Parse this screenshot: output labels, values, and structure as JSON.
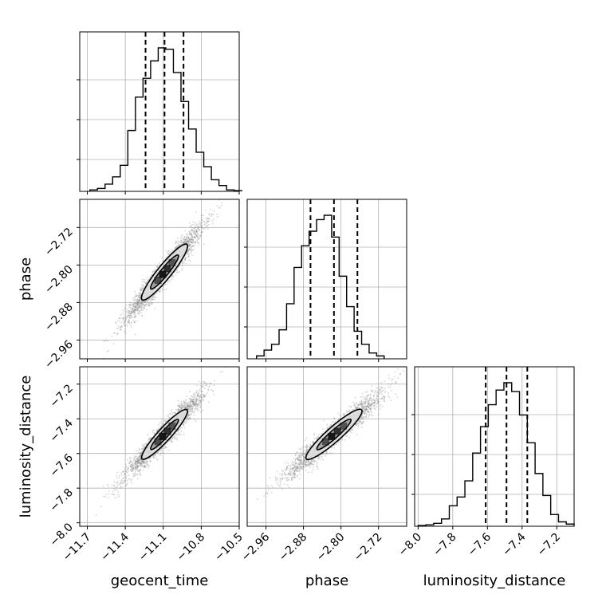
{
  "chart_data": {
    "type": "corner",
    "parameters": [
      "geocent_time",
      "phase",
      "luminosity_distance"
    ],
    "axis_ranges": {
      "geocent_time": [
        -11.76,
        -10.5
      ],
      "phase": [
        -3.0,
        -2.66
      ],
      "luminosity_distance": [
        -8.02,
        -7.1
      ]
    },
    "ticks": {
      "geocent_time": {
        "values": [
          -11.7,
          -11.4,
          -11.1,
          -10.8,
          -10.5
        ],
        "labels": [
          "−11.7",
          "−11.4",
          "−11.1",
          "−10.8",
          "−10.5"
        ]
      },
      "phase": {
        "values": [
          -2.96,
          -2.88,
          -2.8,
          -2.72
        ],
        "labels": [
          "−2.96",
          "−2.88",
          "−2.80",
          "−2.72"
        ]
      },
      "luminosity_distance": {
        "values": [
          -8.0,
          -7.8,
          -7.6,
          -7.4,
          -7.2
        ],
        "labels": [
          "−8.0",
          "−7.8",
          "−7.6",
          "−7.4",
          "−7.2"
        ]
      }
    },
    "quantiles": {
      "geocent_time": [
        -11.24,
        -11.09,
        -10.94
      ],
      "phase": [
        -2.865,
        -2.815,
        -2.765
      ],
      "luminosity_distance": [
        -7.61,
        -7.49,
        -7.37
      ]
    },
    "histograms": {
      "geocent_time": {
        "edges_start": -11.68,
        "bin_width": 0.06,
        "counts": [
          0.01,
          0.02,
          0.05,
          0.1,
          0.18,
          0.42,
          0.65,
          0.78,
          0.9,
          0.99,
          0.98,
          0.82,
          0.62,
          0.43,
          0.27,
          0.17,
          0.08,
          0.04,
          0.01,
          0.005
        ]
      },
      "phase": {
        "edges_start": -2.98,
        "bin_width": 0.016,
        "counts": [
          0.02,
          0.06,
          0.1,
          0.2,
          0.38,
          0.63,
          0.78,
          0.88,
          0.96,
          0.99,
          0.84,
          0.57,
          0.36,
          0.19,
          0.1,
          0.04,
          0.02
        ]
      },
      "luminosity_distance": {
        "edges_start": -8.0,
        "bin_width": 0.045,
        "counts": [
          0.005,
          0.01,
          0.02,
          0.05,
          0.14,
          0.2,
          0.31,
          0.5,
          0.68,
          0.83,
          0.93,
          0.98,
          0.92,
          0.76,
          0.57,
          0.36,
          0.21,
          0.08,
          0.03,
          0.015
        ]
      }
    },
    "scatter_hint": {
      "samples": 2500,
      "point_color": "#888888",
      "correlation": 0.96
    },
    "contour_levels": [
      "1-sigma",
      "2-sigma"
    ],
    "grid": true,
    "colors": {
      "line": "#000000",
      "density_dark": "#111111",
      "density_mid": "#666666",
      "density_light": "#e3e3e3",
      "grid": "#b0b0b0"
    }
  }
}
